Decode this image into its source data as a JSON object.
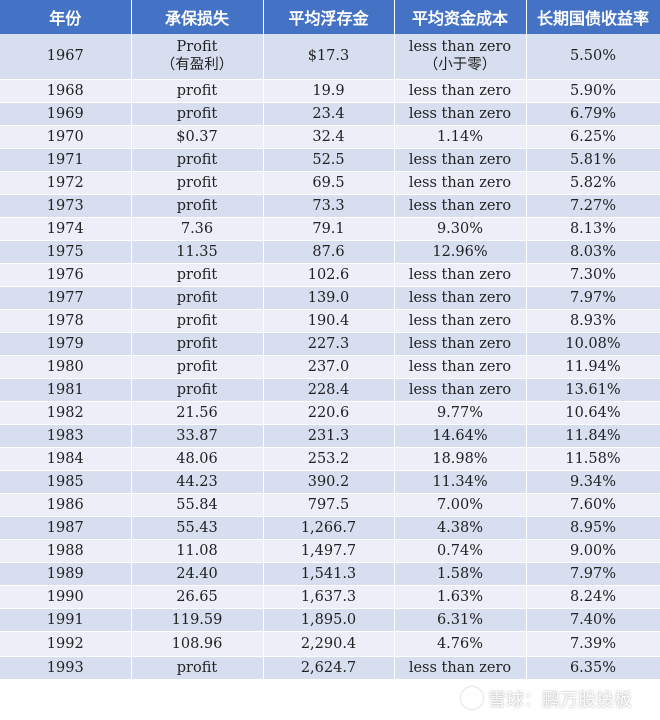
{
  "headers": [
    "年份",
    "承保损失",
    "平均浮存金",
    "平均资金成本",
    "长期国债收益率"
  ],
  "rows": [
    [
      "1967",
      "Profit\n（有盈利）",
      "$17.3",
      "less than zero\n（小于零）",
      "5.50%"
    ],
    [
      "1968",
      "profit",
      "19.9",
      "less than zero",
      "5.90%"
    ],
    [
      "1969",
      "profit",
      "23.4",
      "less than zero",
      "6.79%"
    ],
    [
      "1970",
      "$0.37",
      "32.4",
      "1.14%",
      "6.25%"
    ],
    [
      "1971",
      "profit",
      "52.5",
      "less than zero",
      "5.81%"
    ],
    [
      "1972",
      "profit",
      "69.5",
      "less than zero",
      "5.82%"
    ],
    [
      "1973",
      "profit",
      "73.3",
      "less than zero",
      "7.27%"
    ],
    [
      "1974",
      "7.36",
      "79.1",
      "9.30%",
      "8.13%"
    ],
    [
      "1975",
      "11.35",
      "87.6",
      "12.96%",
      "8.03%"
    ],
    [
      "1976",
      "profit",
      "102.6",
      "less than zero",
      "7.30%"
    ],
    [
      "1977",
      "profit",
      "139.0",
      "less than zero",
      "7.97%"
    ],
    [
      "1978",
      "profit",
      "190.4",
      "less than zero",
      "8.93%"
    ],
    [
      "1979",
      "profit",
      "227.3",
      "less than zero",
      "10.08%"
    ],
    [
      "1980",
      "profit",
      "237.0",
      "less than zero",
      "11.94%"
    ],
    [
      "1981",
      "profit",
      "228.4",
      "less than zero",
      "13.61%"
    ],
    [
      "1982",
      "21.56",
      "220.6",
      "9.77%",
      "10.64%"
    ],
    [
      "1983",
      "33.87",
      "231.3",
      "14.64%",
      "11.84%"
    ],
    [
      "1984",
      "48.06",
      "253.2",
      "18.98%",
      "11.58%"
    ],
    [
      "1985",
      "44.23",
      "390.2",
      "11.34%",
      "9.34%"
    ],
    [
      "1986",
      "55.84",
      "797.5",
      "7.00%",
      "7.60%"
    ],
    [
      "1987",
      "55.43",
      "1,266.7",
      "4.38%",
      "8.95%"
    ],
    [
      "1988",
      "11.08",
      "1,497.7",
      "0.74%",
      "9.00%"
    ],
    [
      "1989",
      "24.40",
      "1,541.3",
      "1.58%",
      "7.97%"
    ],
    [
      "1990",
      "26.65",
      "1,637.3",
      "1.63%",
      "8.24%"
    ],
    [
      "1991",
      "119.59",
      "1,895.0",
      "6.31%",
      "7.40%"
    ],
    [
      "1992",
      "108.96",
      "2,290.4",
      "4.76%",
      "7.39%"
    ],
    [
      "1993",
      "profit",
      "2,624.7",
      "less than zero",
      "6.35%"
    ]
  ],
  "watermark": "雪球：鹏万股投板",
  "colors": {
    "header_bg": "#4472c4",
    "row_odd": "#d6deef",
    "row_even": "#eceff8"
  }
}
